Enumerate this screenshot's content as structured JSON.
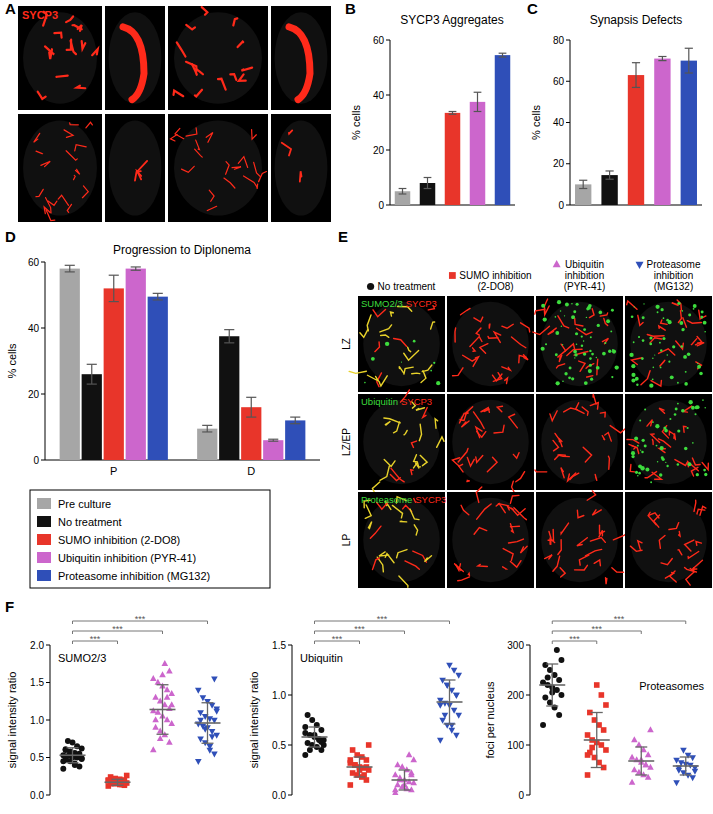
{
  "chart_data": [
    {
      "type": "bar",
      "panel": "B",
      "title": "SYCP3 Aggregates",
      "y_label": "% cells",
      "values": [
        5,
        8,
        33.5,
        37.5,
        54.5
      ],
      "errors": [
        1,
        2,
        0.5,
        3.5,
        0.7
      ],
      "colors": [
        "#a6a6a6",
        "#111111",
        "#e8352a",
        "#cc66cc",
        "#2f4fb8"
      ],
      "ylim": [
        0,
        60
      ],
      "yticks": [
        0,
        20,
        40,
        60
      ],
      "tick_labels": "y"
    },
    {
      "type": "bar",
      "panel": "C",
      "title": "Synapsis Defects",
      "y_label": "% cells",
      "values": [
        10,
        14.5,
        63,
        71,
        70
      ],
      "errors": [
        2,
        2,
        6,
        1,
        6
      ],
      "colors": [
        "#a6a6a6",
        "#111111",
        "#e8352a",
        "#cc66cc",
        "#2f4fb8"
      ],
      "ylim": [
        0,
        80
      ],
      "yticks": [
        0,
        20,
        40,
        60,
        80
      ],
      "tick_labels": "y"
    },
    {
      "type": "bar",
      "panel": "D",
      "title": "Progression to Diplonema",
      "y_label": "% cells",
      "categories": [
        "P",
        "D"
      ],
      "series": [
        {
          "name": "Pre culture",
          "color": "#a6a6a6",
          "values": [
            58,
            9.5
          ],
          "errors": [
            1,
            1
          ]
        },
        {
          "name": "No treatment",
          "color": "#111111",
          "values": [
            26,
            37.5
          ],
          "errors": [
            3,
            2
          ]
        },
        {
          "name": "SUMO inhibition (2-DO8)",
          "color": "#e8352a",
          "values": [
            52,
            16
          ],
          "errors": [
            4,
            3
          ]
        },
        {
          "name": "Ubiquitin inhibition (PYR-41)",
          "color": "#cc66cc",
          "values": [
            58,
            6
          ],
          "errors": [
            0.5,
            0.3
          ]
        },
        {
          "name": "Proteasome inhibition (MG132)",
          "color": "#2f4fb8",
          "values": [
            49.5,
            12
          ],
          "errors": [
            1,
            1
          ]
        }
      ],
      "ylim": [
        0,
        60
      ],
      "yticks": [
        0,
        20,
        40,
        60
      ],
      "legend": "bottom"
    },
    {
      "type": "scatter",
      "panel": "F",
      "title": "SUMO2/3",
      "y_label": "signal intensity ratio",
      "series": [
        {
          "color": "#111111",
          "marker": "circle",
          "values": [
            0.35,
            0.38,
            0.42,
            0.45,
            0.47,
            0.48,
            0.5,
            0.5,
            0.52,
            0.53,
            0.55,
            0.56,
            0.58,
            0.6,
            0.62,
            0.65,
            0.7,
            0.72,
            0.45,
            0.52,
            0.4,
            0.57,
            0.61,
            0.49
          ],
          "mean": 0.53,
          "sd": 0.1
        },
        {
          "color": "#e8352a",
          "marker": "square",
          "values": [
            0.12,
            0.13,
            0.14,
            0.15,
            0.15,
            0.16,
            0.17,
            0.17,
            0.18,
            0.19,
            0.2,
            0.21,
            0.22,
            0.24,
            0.26,
            0.14,
            0.16,
            0.18,
            0.2,
            0.15
          ],
          "mean": 0.17,
          "sd": 0.04
        },
        {
          "color": "#cc66cc",
          "marker": "triangle-up",
          "values": [
            0.6,
            0.7,
            0.8,
            0.85,
            0.9,
            0.95,
            1.0,
            1.05,
            1.1,
            1.12,
            1.15,
            1.2,
            1.25,
            1.3,
            1.35,
            1.4,
            1.45,
            1.5,
            1.55,
            1.65,
            1.75,
            0.75,
            1.0,
            1.2,
            1.3,
            1.6
          ],
          "mean": 1.14,
          "sd": 0.33
        },
        {
          "color": "#2f4fb8",
          "marker": "triangle-down",
          "values": [
            0.45,
            0.55,
            0.6,
            0.7,
            0.75,
            0.8,
            0.85,
            0.9,
            0.92,
            0.95,
            1.0,
            1.02,
            1.05,
            1.1,
            1.15,
            1.2,
            1.25,
            1.3,
            1.4,
            1.55,
            0.65,
            0.88,
            1.0,
            1.12,
            0.78
          ],
          "mean": 0.96,
          "sd": 0.27
        }
      ],
      "significance": [
        {
          "pair": [
            0,
            1
          ],
          "label": "***"
        },
        {
          "pair": [
            0,
            2
          ],
          "label": "***"
        },
        {
          "pair": [
            0,
            3
          ],
          "label": "***"
        }
      ],
      "ylim": [
        0,
        2
      ],
      "yticks": [
        {
          "value": 0,
          "label": "0.0"
        },
        {
          "value": 0.5,
          "label": "0.5"
        },
        {
          "value": 1,
          "label": "1.0"
        },
        {
          "value": 1.5,
          "label": "1.5"
        },
        {
          "value": 2,
          "label": "2.0"
        }
      ],
      "tick_labels": "y"
    },
    {
      "type": "scatter",
      "title": "Ubiquitin",
      "y_label": "signal intensity ratio",
      "series": [
        {
          "color": "#111111",
          "marker": "circle",
          "values": [
            0.4,
            0.45,
            0.48,
            0.5,
            0.52,
            0.55,
            0.56,
            0.58,
            0.6,
            0.62,
            0.65,
            0.7,
            0.75,
            0.8,
            0.5,
            0.55,
            0.6,
            0.45,
            0.68,
            0.53
          ],
          "mean": 0.58,
          "sd": 0.1
        },
        {
          "color": "#e8352a",
          "marker": "square",
          "values": [
            0.1,
            0.15,
            0.18,
            0.2,
            0.22,
            0.25,
            0.27,
            0.28,
            0.3,
            0.32,
            0.35,
            0.38,
            0.4,
            0.45,
            0.5,
            0.2,
            0.25,
            0.3,
            0.35,
            0.28
          ],
          "mean": 0.28,
          "sd": 0.1
        },
        {
          "color": "#cc66cc",
          "marker": "triangle-up",
          "values": [
            0.02,
            0.05,
            0.06,
            0.08,
            0.1,
            0.12,
            0.13,
            0.15,
            0.17,
            0.2,
            0.22,
            0.25,
            0.28,
            0.3,
            0.35,
            0.4,
            0.1,
            0.15,
            0.05,
            0.2
          ],
          "mean": 0.15,
          "sd": 0.1
        },
        {
          "color": "#2f4fb8",
          "marker": "triangle-down",
          "values": [
            0.55,
            0.6,
            0.65,
            0.7,
            0.75,
            0.8,
            0.85,
            0.9,
            0.92,
            0.95,
            1.0,
            1.05,
            1.1,
            1.15,
            1.2,
            1.25,
            1.3,
            0.8,
            0.9,
            1.0,
            0.7,
            1.1
          ],
          "mean": 0.93,
          "sd": 0.22
        }
      ],
      "significance": [
        {
          "pair": [
            0,
            1
          ],
          "label": "***"
        },
        {
          "pair": [
            0,
            2
          ],
          "label": "***"
        },
        {
          "pair": [
            0,
            3
          ],
          "label": "***"
        }
      ],
      "ylim": [
        0,
        1.5
      ],
      "yticks": [
        {
          "value": 0,
          "label": "0.0"
        },
        {
          "value": 0.5,
          "label": "0.5"
        },
        {
          "value": 1,
          "label": "1.0"
        },
        {
          "value": 1.5,
          "label": "1.5"
        }
      ],
      "tick_labels": "y"
    },
    {
      "type": "scatter",
      "title": "Proteasomes",
      "y_label": "foci per nucleus",
      "series": [
        {
          "color": "#111111",
          "marker": "circle",
          "values": [
            140,
            160,
            175,
            185,
            195,
            200,
            210,
            215,
            220,
            225,
            230,
            240,
            250,
            260,
            270,
            290,
            205,
            235
          ],
          "mean": 220,
          "sd": 42
        },
        {
          "color": "#e8352a",
          "marker": "square",
          "values": [
            40,
            55,
            65,
            75,
            85,
            90,
            100,
            105,
            110,
            120,
            130,
            140,
            150,
            165,
            180,
            200,
            220,
            95,
            80
          ],
          "mean": 110,
          "sd": 55
        },
        {
          "color": "#cc66cc",
          "marker": "triangle-up",
          "values": [
            25,
            35,
            40,
            45,
            50,
            55,
            60,
            65,
            70,
            75,
            80,
            90,
            100,
            110,
            130,
            60,
            70
          ],
          "mean": 68,
          "sd": 28
        },
        {
          "color": "#2f4fb8",
          "marker": "triangle-down",
          "values": [
            25,
            35,
            40,
            45,
            50,
            55,
            60,
            62,
            65,
            70,
            75,
            80,
            90,
            55,
            48
          ],
          "mean": 58,
          "sd": 18
        }
      ],
      "significance": [
        {
          "pair": [
            0,
            1
          ],
          "label": "***"
        },
        {
          "pair": [
            0,
            2
          ],
          "label": "***"
        },
        {
          "pair": [
            0,
            3
          ],
          "label": "***"
        }
      ],
      "ylim": [
        0,
        300
      ],
      "yticks": [
        0,
        100,
        200,
        300
      ],
      "tick_labels": "y"
    }
  ],
  "panel_A": {
    "panel": "A",
    "label": "SYCP3",
    "label_color": "#ff2a1a"
  },
  "panel_E": {
    "panel": "E",
    "columns": [
      {
        "label": "No treatment",
        "color": "#111111",
        "marker": "circle"
      },
      {
        "label": "SUMO inhibition (2-DO8)",
        "color": "#e8352a",
        "marker": "square"
      },
      {
        "label": "Ubiquitin inhibition (PYR-41)",
        "color": "#cc66cc",
        "marker": "triangle-up"
      },
      {
        "label": "Proteasome inhibition (MG132)",
        "color": "#2f4fb8",
        "marker": "triangle-down"
      }
    ],
    "rows": [
      {
        "label": "LZ",
        "stain": "SUMO2/3"
      },
      {
        "label": "LZ/EP",
        "stain": "Ubiquitin"
      },
      {
        "label": "LP",
        "stain": "Proteasome"
      }
    ],
    "counterstain": "SYCP3",
    "stain_color": "#3ddc3d",
    "counterstain_color": "#ff2a1a"
  }
}
